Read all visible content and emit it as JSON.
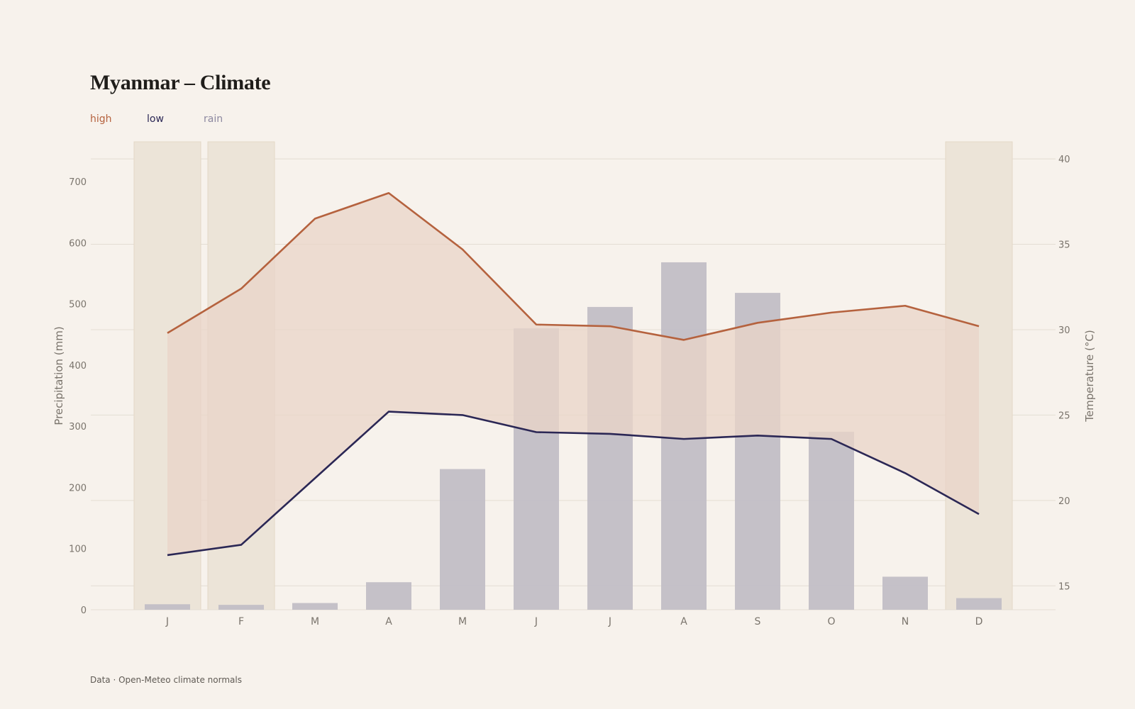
{
  "page": {
    "title": "Myanmar – Climate",
    "source": "Data · Open-Meteo climate normals"
  },
  "legend": {
    "high": "high",
    "low": "low",
    "rain": "rain"
  },
  "colors": {
    "background": "#f7f2ec",
    "high": "#b5623e",
    "low": "#2b2755",
    "rain_bar": "#c2bec6",
    "temp_band": "#e9d4c8",
    "dry_season_band": "#ece4d8",
    "grid": "#e4ddd3",
    "axis_text": "#7a746c"
  },
  "chart_data": {
    "type": "bar+line",
    "categories": [
      "J",
      "F",
      "M",
      "A",
      "M",
      "J",
      "J",
      "A",
      "S",
      "O",
      "N",
      "D"
    ],
    "series": [
      {
        "name": "rain",
        "kind": "bar",
        "axis": "left",
        "values": [
          9,
          8,
          11,
          45,
          230,
          460,
          495,
          568,
          518,
          291,
          54,
          19
        ]
      },
      {
        "name": "high",
        "kind": "line",
        "axis": "right",
        "values": [
          29.8,
          32.4,
          36.5,
          38.0,
          34.7,
          30.3,
          30.2,
          29.4,
          30.4,
          31.0,
          31.4,
          30.2
        ]
      },
      {
        "name": "low",
        "kind": "line",
        "axis": "right",
        "values": [
          16.8,
          17.4,
          21.3,
          25.2,
          25.0,
          24.0,
          23.9,
          23.6,
          23.8,
          23.6,
          21.6,
          19.2
        ]
      }
    ],
    "band_between": [
      "low",
      "high"
    ],
    "highlighted_months": [
      0,
      1,
      11
    ],
    "y_left": {
      "label": "Precipitation (mm)",
      "ticks": [
        0,
        100,
        200,
        300,
        400,
        500,
        600,
        700
      ],
      "range": [
        0,
        765
      ]
    },
    "y_right": {
      "label": "Temperature (°C)",
      "ticks": [
        15,
        20,
        25,
        30,
        35,
        40
      ],
      "range": [
        13.6,
        41.0
      ]
    },
    "grid": "horizontal",
    "legend_position": "top-left"
  }
}
